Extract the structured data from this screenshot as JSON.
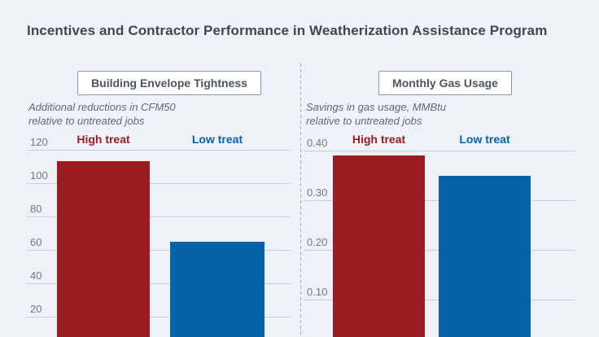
{
  "title": "Incentives and Contractor Performance in Weatherization Assistance Program",
  "colors": {
    "background": "#eef2f7",
    "high_treat_red": "#9a1c20",
    "low_treat_blue": "#0663a8",
    "gridline": "#c9cfd6",
    "divider_dash": "#9fa8b0",
    "title_text": "#3d4852",
    "subtitle_text": "#5d6a74",
    "tick_text": "#6e7a84",
    "panel_box_border": "#8d959c",
    "panel_box_text": "#4d565e",
    "panel_box_background": "#ffffff"
  },
  "chart_data": [
    {
      "type": "bar",
      "title": "Building Envelope Tightness",
      "subtitle_lines": [
        "Additional reductions in CFM50",
        "relative to untreated jobs"
      ],
      "categories": [
        "High treat",
        "Low treat"
      ],
      "values": [
        113,
        65
      ],
      "bar_colors": [
        "#9a1c20",
        "#0663a8"
      ],
      "category_label_colors": [
        "#9a1c20",
        "#0663a8"
      ],
      "yticks": [
        120,
        100,
        80,
        60,
        40,
        20
      ],
      "ytick_labels": [
        "120",
        "100",
        "80",
        "60",
        "40",
        "20"
      ],
      "ylim": [
        0,
        120
      ],
      "grid": true,
      "legend": "none",
      "note": "bars extend below the visible crop of the figure"
    },
    {
      "type": "bar",
      "title": "Monthly Gas Usage",
      "subtitle_lines": [
        "Savings in gas usage, MMBtu",
        "relative to untreated jobs"
      ],
      "categories": [
        "High treat",
        "Low treat"
      ],
      "values": [
        0.39,
        0.35
      ],
      "bar_colors": [
        "#9a1c20",
        "#0663a8"
      ],
      "category_label_colors": [
        "#9a1c20",
        "#0663a8"
      ],
      "yticks": [
        0.4,
        0.3,
        0.2,
        0.1
      ],
      "ytick_labels": [
        "0.40",
        "0.30",
        "0.20",
        "0.10"
      ],
      "ylim": [
        0,
        0.4
      ],
      "grid": true,
      "legend": "none",
      "note": "bars extend below the visible crop of the figure"
    }
  ]
}
